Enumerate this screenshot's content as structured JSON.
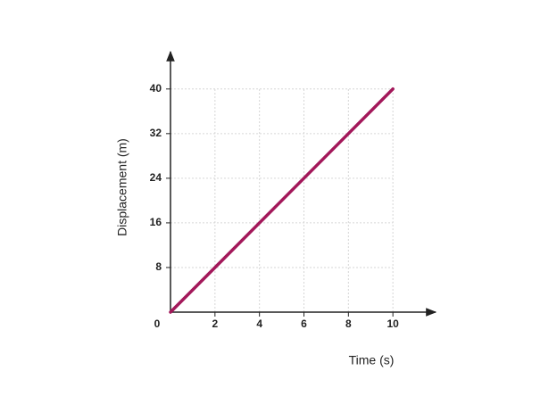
{
  "chart_data": {
    "type": "line",
    "x_label": "Time (s)",
    "y_label": "Displacement (m)",
    "x": [
      0,
      10
    ],
    "series": [
      {
        "name": "Displacement",
        "color": "#a3185a",
        "values": [
          0,
          40
        ]
      }
    ],
    "xlim": [
      0,
      12
    ],
    "ylim": [
      0,
      47
    ],
    "xticks": [
      0,
      2,
      4,
      6,
      8,
      10
    ],
    "yticks": [
      8,
      16,
      24,
      32,
      40
    ],
    "grid": true
  }
}
